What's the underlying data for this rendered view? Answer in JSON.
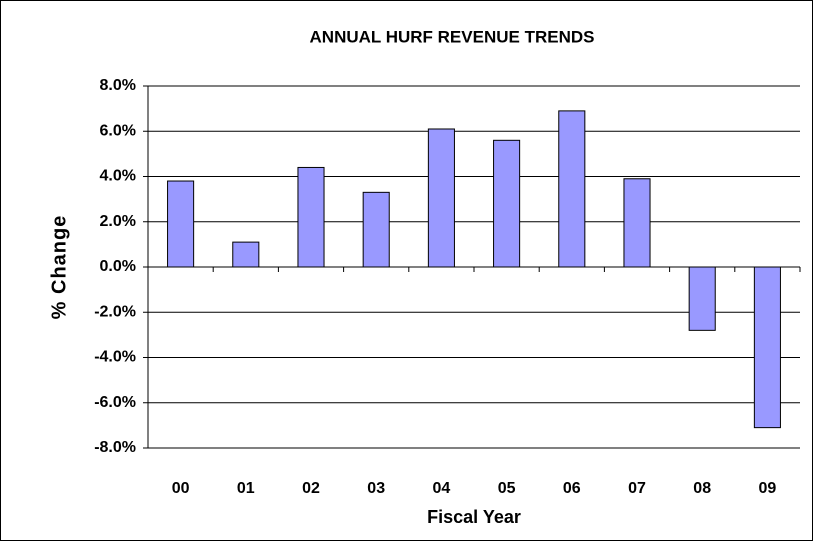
{
  "chart_data": {
    "type": "bar",
    "title": "ANNUAL HURF REVENUE TRENDS",
    "x_label": "Fiscal Year",
    "y_label": "% Change",
    "categories": [
      "00",
      "01",
      "02",
      "03",
      "04",
      "05",
      "06",
      "07",
      "08",
      "09"
    ],
    "values": [
      3.8,
      1.1,
      4.4,
      3.3,
      6.1,
      5.6,
      6.9,
      3.9,
      -2.8,
      -7.1
    ],
    "color": "#9999ff",
    "ylim": [
      -8,
      8
    ],
    "yticks": [
      {
        "value": -8,
        "label": "-8.0%"
      },
      {
        "value": -6,
        "label": "-6.0%"
      },
      {
        "value": -4,
        "label": "-4.0%"
      },
      {
        "value": -2,
        "label": "-2.0%"
      },
      {
        "value": 0,
        "label": "0.0%"
      },
      {
        "value": 2,
        "label": "2.0%"
      },
      {
        "value": 4,
        "label": "4.0%"
      },
      {
        "value": 6,
        "label": "6.0%"
      },
      {
        "value": 8,
        "label": "8.0%"
      }
    ],
    "grid": true
  }
}
